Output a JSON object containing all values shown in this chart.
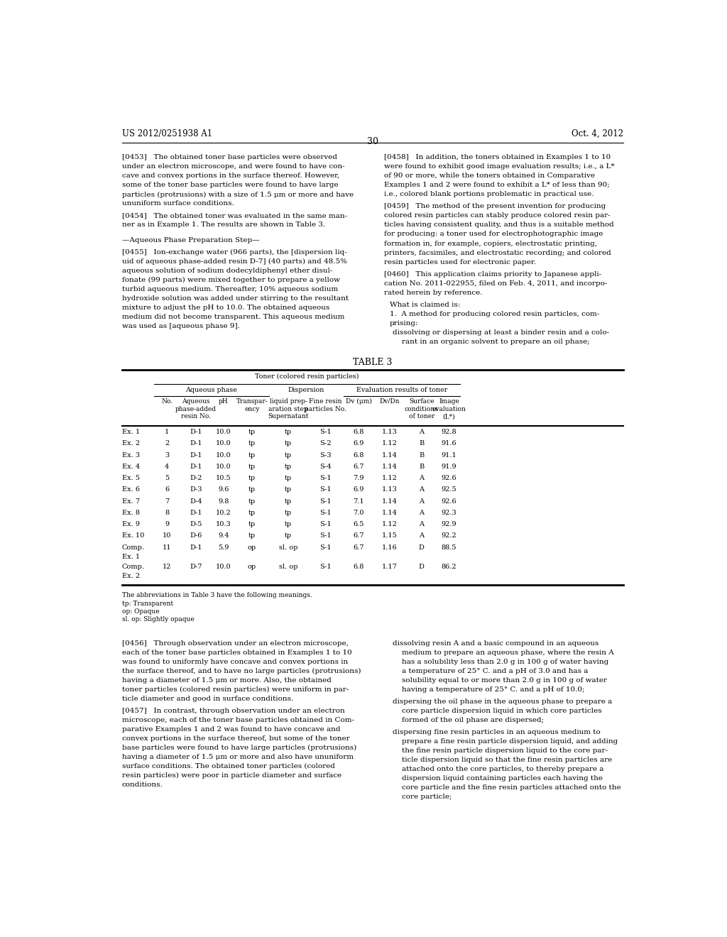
{
  "page_header_left": "US 2012/0251938 A1",
  "page_header_right": "Oct. 4, 2012",
  "page_number": "30",
  "background_color": "#ffffff",
  "text_color": "#000000",
  "table_title": "TABLE 3",
  "table_header_main": "Toner (colored resin particles)",
  "table_header_aq": "Aqueous phase",
  "table_header_disp": "Dispersion",
  "table_header_eval": "Evaluation results of toner",
  "table_rows": [
    [
      "Ex. 1",
      "1",
      "D-1",
      "10.0",
      "tp",
      "tp",
      "S-1",
      "6.8",
      "1.13",
      "A",
      "92.8"
    ],
    [
      "Ex. 2",
      "2",
      "D-1",
      "10.0",
      "tp",
      "tp",
      "S-2",
      "6.9",
      "1.12",
      "B",
      "91.6"
    ],
    [
      "Ex. 3",
      "3",
      "D-1",
      "10.0",
      "tp",
      "tp",
      "S-3",
      "6.8",
      "1.14",
      "B",
      "91.1"
    ],
    [
      "Ex. 4",
      "4",
      "D-1",
      "10.0",
      "tp",
      "tp",
      "S-4",
      "6.7",
      "1.14",
      "B",
      "91.9"
    ],
    [
      "Ex. 5",
      "5",
      "D-2",
      "10.5",
      "tp",
      "tp",
      "S-1",
      "7.9",
      "1.12",
      "A",
      "92.6"
    ],
    [
      "Ex. 6",
      "6",
      "D-3",
      "9.6",
      "tp",
      "tp",
      "S-1",
      "6.9",
      "1.13",
      "A",
      "92.5"
    ],
    [
      "Ex. 7",
      "7",
      "D-4",
      "9.8",
      "tp",
      "tp",
      "S-1",
      "7.1",
      "1.14",
      "A",
      "92.6"
    ],
    [
      "Ex. 8",
      "8",
      "D-1",
      "10.2",
      "tp",
      "tp",
      "S-1",
      "7.0",
      "1.14",
      "A",
      "92.3"
    ],
    [
      "Ex. 9",
      "9",
      "D-5",
      "10.3",
      "tp",
      "tp",
      "S-1",
      "6.5",
      "1.12",
      "A",
      "92.9"
    ],
    [
      "Ex. 10",
      "10",
      "D-6",
      "9.4",
      "tp",
      "tp",
      "S-1",
      "6.7",
      "1.15",
      "A",
      "92.2"
    ],
    [
      "Comp.\nEx. 1",
      "11",
      "D-1",
      "5.9",
      "op",
      "sl. op",
      "S-1",
      "6.7",
      "1.16",
      "D",
      "88.5"
    ],
    [
      "Comp.\nEx. 2",
      "12",
      "D-7",
      "10.0",
      "op",
      "sl. op",
      "S-1",
      "6.8",
      "1.17",
      "D",
      "86.2"
    ]
  ],
  "abbrev_note": "The abbreviations in Table 3 have the following meanings.",
  "abbrev_tp": "tp: Transparent",
  "abbrev_op": "op: Opaque",
  "abbrev_slop": "sl. op: Slightly opaque"
}
